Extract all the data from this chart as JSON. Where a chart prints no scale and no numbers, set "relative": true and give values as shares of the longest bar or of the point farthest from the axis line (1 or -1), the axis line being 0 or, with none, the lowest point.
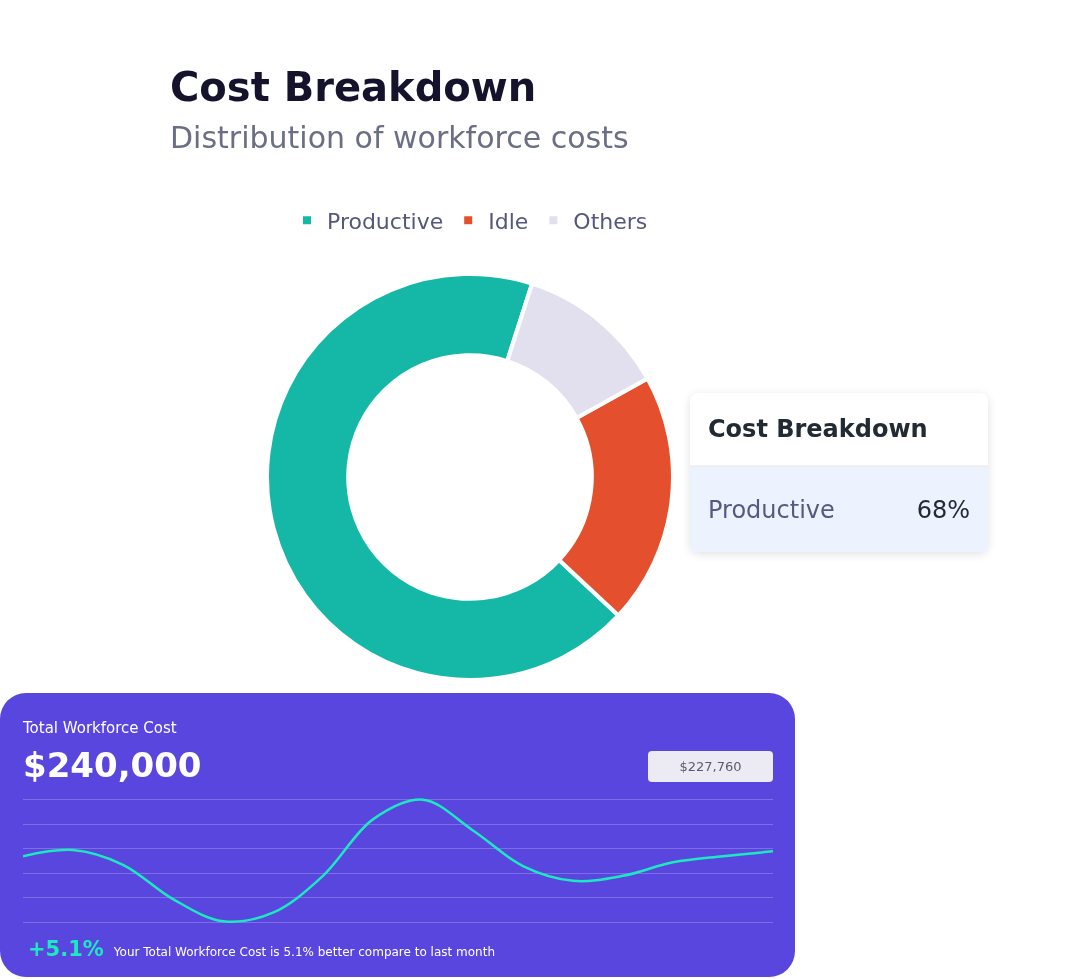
{
  "chart_data": [
    {
      "type": "donut",
      "title": "Cost Breakdown",
      "subtitle": "Distribution of workforce costs",
      "categories": [
        "Productive",
        "Idle",
        "Others"
      ],
      "values": [
        68,
        20,
        12
      ],
      "colors": [
        "#15b8a6",
        "#e4502e",
        "#e2e0ee"
      ],
      "legend": "top",
      "annotations": [
        "Cost Breakdown",
        "Productive",
        "68%"
      ]
    },
    {
      "type": "line",
      "title": "Total Workforce Cost",
      "subtitle": "$240,000",
      "relative": true,
      "grid": true,
      "categories": [
        null,
        null,
        null,
        null,
        null,
        null,
        null,
        null,
        null,
        null,
        null,
        null,
        null,
        null,
        null,
        null
      ],
      "series": [
        {
          "color": "#1de9c0",
          "values": [
            0.54,
            0.59,
            0.47,
            0.19,
            0.01,
            0.08,
            0.38,
            0.84,
            1,
            0.75,
            0.46,
            0.34,
            0.38,
            0.49,
            0.54,
            0.58
          ]
        }
      ],
      "annotations": [
        "$227,760",
        "+5.1%",
        "Your Total Workforce Cost is 5.1% better compare to last month"
      ]
    }
  ]
}
